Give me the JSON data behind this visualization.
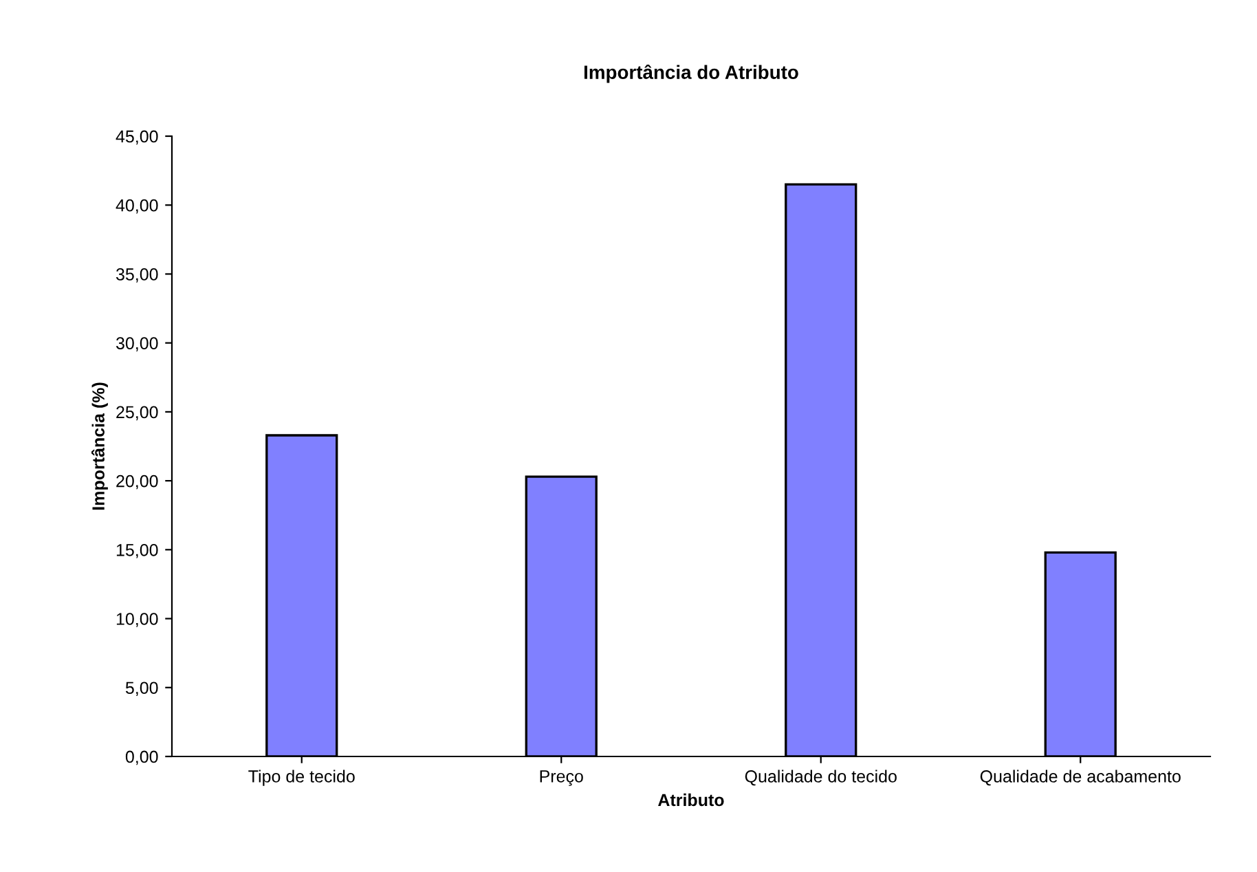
{
  "chart_data": {
    "type": "bar",
    "title": "Importância do Atributo",
    "xlabel": "Atributo",
    "ylabel": "Importância (%)",
    "categories": [
      "Tipo de tecido",
      "Preço",
      "Qualidade do tecido",
      "Qualidade de acabamento"
    ],
    "values": [
      23.3,
      20.3,
      41.5,
      14.8
    ],
    "color": "#8080ff",
    "ylim": [
      0,
      45
    ],
    "yticks": [
      {
        "value": 0,
        "label": "0,00"
      },
      {
        "value": 5,
        "label": "5,00"
      },
      {
        "value": 10,
        "label": "10,00"
      },
      {
        "value": 15,
        "label": "15,00"
      },
      {
        "value": 20,
        "label": "20,00"
      },
      {
        "value": 25,
        "label": "25,00"
      },
      {
        "value": 30,
        "label": "30,00"
      },
      {
        "value": 35,
        "label": "35,00"
      },
      {
        "value": 40,
        "label": "40,00"
      },
      {
        "value": 45,
        "label": "45,00"
      }
    ],
    "grid": false,
    "legend": false
  }
}
